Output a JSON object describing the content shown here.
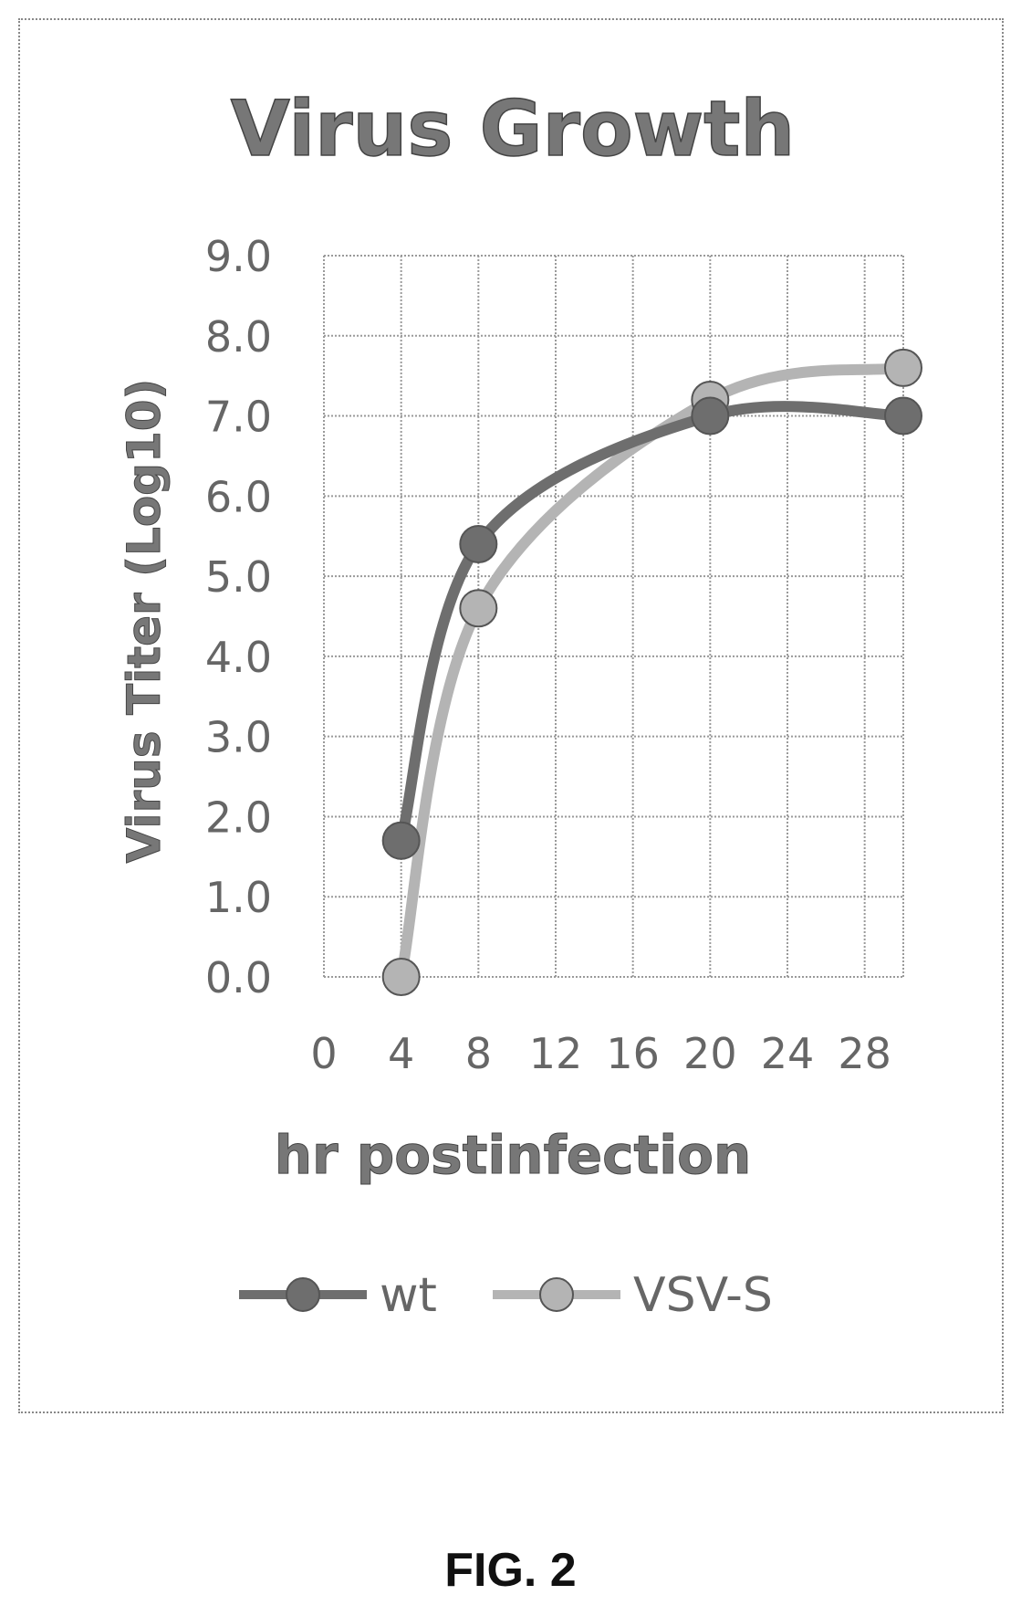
{
  "chart_data": {
    "type": "line",
    "title": "Virus Growth",
    "xlabel": "hr postinfection",
    "ylabel": "Virus Titer (Log10)",
    "xlim": [
      0,
      30
    ],
    "ylim": [
      0,
      9
    ],
    "x_ticks": [
      "0",
      "4",
      "8",
      "12",
      "16",
      "20",
      "24",
      "28"
    ],
    "y_ticks": [
      "0.0",
      "1.0",
      "2.0",
      "3.0",
      "4.0",
      "5.0",
      "6.0",
      "7.0",
      "8.0",
      "9.0"
    ],
    "grid": true,
    "legend_position": "bottom",
    "series": [
      {
        "name": "wt",
        "x": [
          4,
          8,
          20,
          30
        ],
        "y": [
          1.7,
          5.4,
          7.0,
          7.0
        ],
        "color": "#6e6e6e"
      },
      {
        "name": "VSV-S",
        "x": [
          4,
          8,
          20,
          30
        ],
        "y": [
          0.0,
          4.6,
          7.2,
          7.6
        ],
        "color": "#b4b4b4"
      }
    ]
  },
  "figure_label": "FIG. 2"
}
